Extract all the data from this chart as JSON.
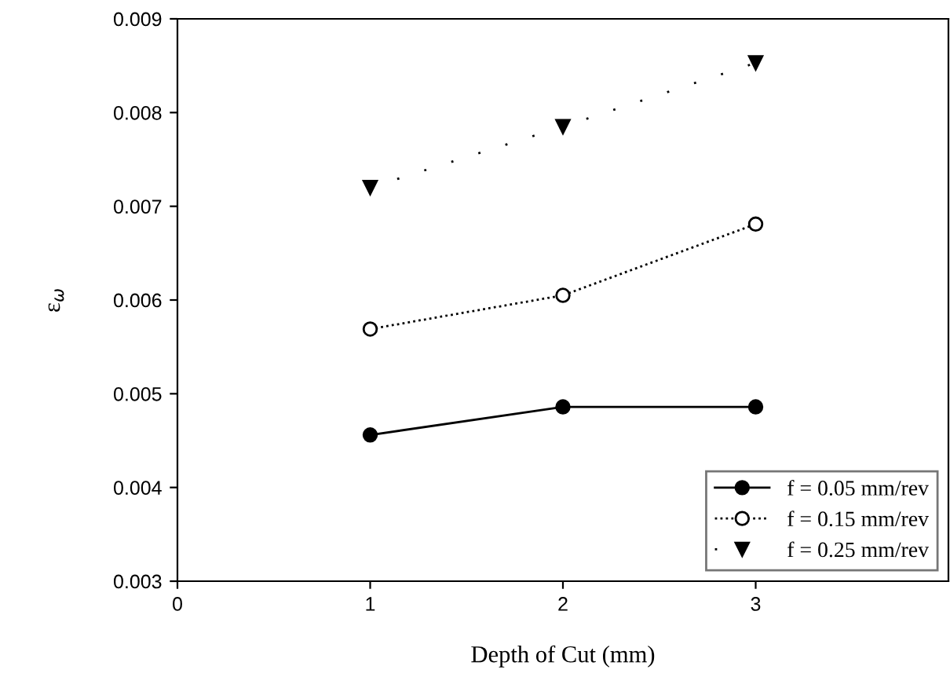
{
  "chart_data": {
    "type": "line",
    "xlabel": "Depth of Cut (mm)",
    "ylabel": "ε$_{ω}$",
    "xlim": [
      0,
      4
    ],
    "xticks": [
      0,
      1,
      2,
      3
    ],
    "ylim": [
      0.003,
      0.009
    ],
    "yticks": [
      0.003,
      0.004,
      0.005,
      0.006,
      0.007,
      0.008,
      0.009
    ],
    "x": [
      1,
      2,
      3
    ],
    "grid": false,
    "legend": "bottom right",
    "series": [
      {
        "name": "f = 0.05 mm/rev",
        "color": "#000000",
        "values": [
          0.00456,
          0.00486,
          0.00486
        ],
        "marker": "circle",
        "line_style": "solid"
      },
      {
        "name": "f = 0.15 mm/rev",
        "color": "#000000",
        "values": [
          0.00569,
          0.00605,
          0.00681
        ],
        "marker": "circle",
        "line_style": "dotted"
      },
      {
        "name": "f = 0.25 mm/rev",
        "color": "#000000",
        "values": [
          0.0072,
          0.00785,
          0.00853
        ],
        "marker": "triangle",
        "line_style": "dotted"
      }
    ]
  }
}
